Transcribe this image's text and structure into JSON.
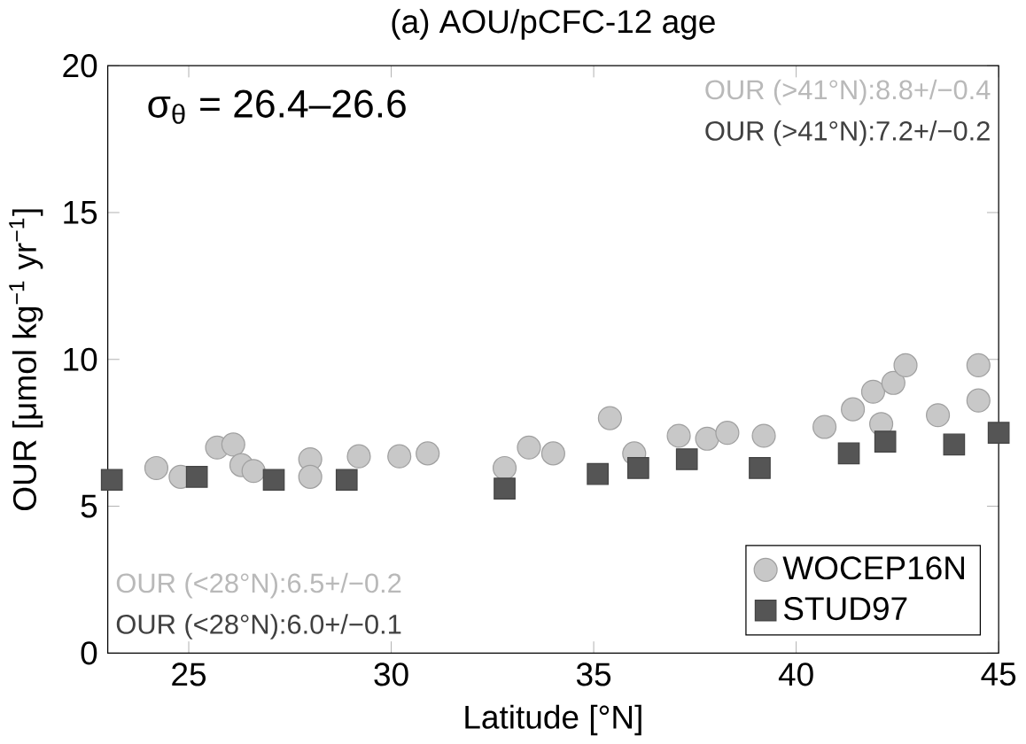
{
  "chart_data": {
    "type": "scatter",
    "title": "(a) AOU/pCFC-12 age",
    "xlabel": "Latitude [°N]",
    "ylabel": "OUR [μmol kg$^{−1}$ yr$^{−1}$]",
    "xlim": [
      23,
      45
    ],
    "ylim": [
      0,
      20
    ],
    "xticks": [
      25,
      30,
      35,
      40,
      45
    ],
    "yticks": [
      0,
      5,
      10,
      15,
      20
    ],
    "grid": false,
    "legend": "bottom right",
    "annotations": [
      "σ$_{θ}$ = 26.4–26.6",
      "OUR (>41°N):8.8+/−0.4",
      "OUR (>41°N):7.2+/−0.2",
      "OUR (<28°N):6.5+/−0.2",
      "OUR (<28°N):6.0+/−0.1"
    ],
    "series": [
      {
        "name": "WOCEP16N",
        "color": "#c8c8c8",
        "marker": "circle",
        "x": [
          24.2,
          24.8,
          25.7,
          26.1,
          26.3,
          26.6,
          28.0,
          28.0,
          29.2,
          30.2,
          30.9,
          32.8,
          33.4,
          34.0,
          35.4,
          36.0,
          37.1,
          37.8,
          38.3,
          39.2,
          40.7,
          41.4,
          41.9,
          42.1,
          42.4,
          42.7,
          43.5,
          44.5,
          44.5
        ],
        "values": [
          6.3,
          6.0,
          7.0,
          7.1,
          6.4,
          6.2,
          6.6,
          6.0,
          6.7,
          6.7,
          6.8,
          6.3,
          7.0,
          6.8,
          8.0,
          6.8,
          7.4,
          7.3,
          7.5,
          7.4,
          7.7,
          8.3,
          8.9,
          7.8,
          9.2,
          9.8,
          8.1,
          9.8,
          8.6
        ]
      },
      {
        "name": "STUD97",
        "color": "#555555",
        "marker": "square",
        "x": [
          23.1,
          25.2,
          27.1,
          28.9,
          32.8,
          35.1,
          36.1,
          37.3,
          39.1,
          41.3,
          42.2,
          43.9,
          45.0
        ],
        "values": [
          5.9,
          6.0,
          5.9,
          5.9,
          5.6,
          6.1,
          6.3,
          6.6,
          6.3,
          6.8,
          7.2,
          7.1,
          7.5
        ]
      }
    ]
  }
}
